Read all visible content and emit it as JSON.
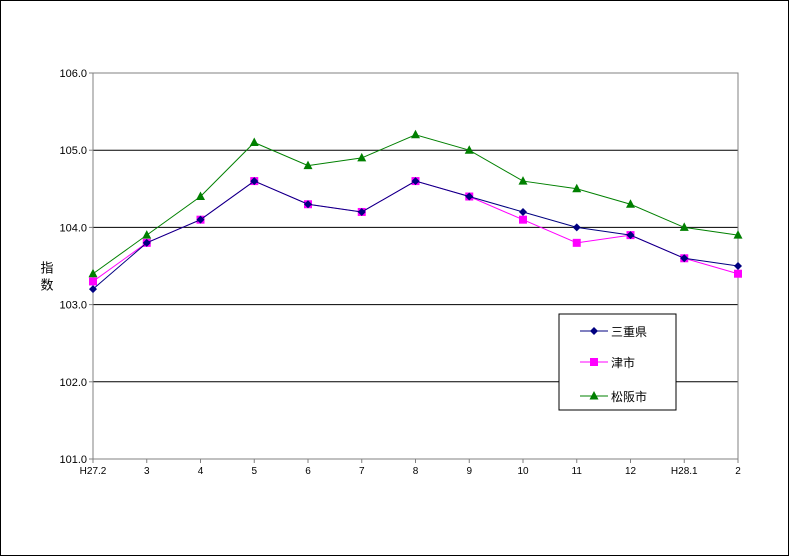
{
  "chart_data": {
    "type": "line",
    "ylabel": "指数",
    "ylim": [
      101.0,
      106.0
    ],
    "yticks": [
      "101.0",
      "102.0",
      "103.0",
      "104.0",
      "105.0",
      "106.0"
    ],
    "categories": [
      "H27.2",
      "3",
      "4",
      "5",
      "6",
      "7",
      "8",
      "9",
      "10",
      "11",
      "12",
      "H28.1",
      "2"
    ],
    "grid": true,
    "legend_position": "right",
    "series": [
      {
        "name": "三重県",
        "color": "#000080",
        "marker": "diamond",
        "values": [
          103.2,
          103.8,
          104.1,
          104.6,
          104.3,
          104.2,
          104.6,
          104.4,
          104.2,
          104.0,
          103.9,
          103.6,
          103.5
        ]
      },
      {
        "name": "津市",
        "color": "#ff00ff",
        "marker": "square",
        "values": [
          103.3,
          103.8,
          104.1,
          104.6,
          104.3,
          104.2,
          104.6,
          104.4,
          104.1,
          103.8,
          103.9,
          103.6,
          103.4
        ]
      },
      {
        "name": "松阪市",
        "color": "#008000",
        "marker": "triangle",
        "values": [
          103.4,
          103.9,
          104.4,
          105.1,
          104.8,
          104.9,
          105.2,
          105.0,
          104.6,
          104.5,
          104.3,
          104.0,
          103.9
        ]
      }
    ]
  }
}
